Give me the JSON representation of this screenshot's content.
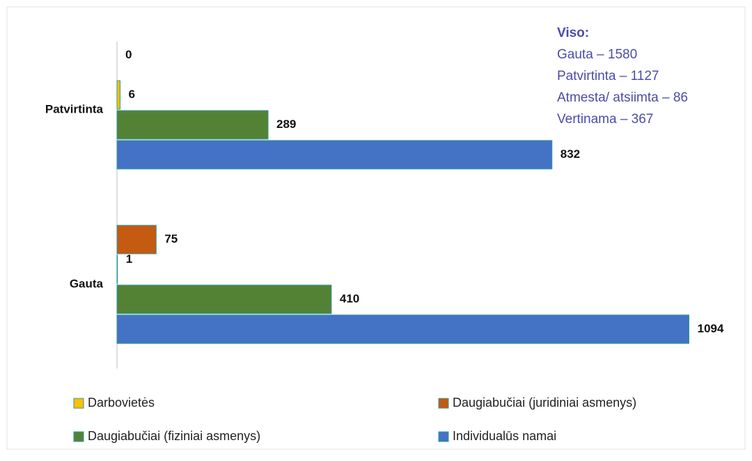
{
  "chart_data": {
    "type": "bar",
    "orientation": "horizontal",
    "categories": [
      "Patvirtinta",
      "Gauta"
    ],
    "series": [
      {
        "name": "Individualūs namai",
        "color": "#4472c4",
        "values": [
          832,
          1094
        ]
      },
      {
        "name": "Daugiabučiai (fiziniai asmenys)",
        "color": "#548235",
        "values": [
          289,
          410
        ]
      },
      {
        "name": "Darbovietės",
        "color": "#ffc000",
        "values": [
          6,
          1
        ]
      },
      {
        "name": "Daugiabučiai (juridiniai asmenys)",
        "color": "#c55a11",
        "values": [
          0,
          75
        ]
      }
    ],
    "xlim": [
      0,
      1100
    ],
    "annotation": {
      "title": "Viso:",
      "lines": [
        "Gauta – 1580",
        "Patvirtinta – 1127",
        "Atmesta/ atsiimta – 86",
        "Vertinama – 367"
      ]
    },
    "legend_order": [
      2,
      3,
      1,
      0
    ]
  }
}
